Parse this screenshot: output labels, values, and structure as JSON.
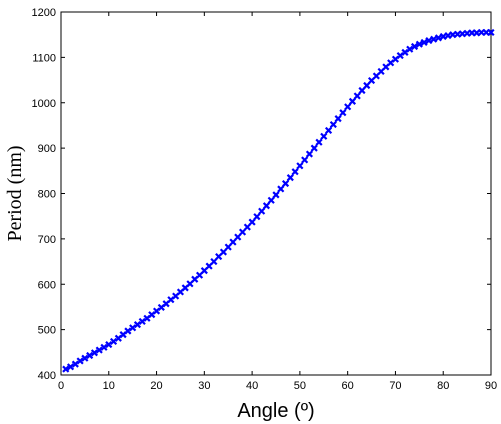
{
  "chart_data": {
    "type": "scatter",
    "title": "",
    "xlabel": "Angle (º)",
    "ylabel": "Period (nm)",
    "xlim": [
      0,
      90
    ],
    "ylim": [
      400,
      1200
    ],
    "xticks": [
      0,
      10,
      20,
      30,
      40,
      50,
      60,
      70,
      80,
      90
    ],
    "yticks": [
      400,
      500,
      600,
      700,
      800,
      900,
      1000,
      1100,
      1200
    ],
    "grid": false,
    "marker": "x",
    "colors": {
      "series": "#0000ff",
      "axes": "#000000"
    },
    "series": [
      {
        "x": [
          1,
          2,
          3,
          4,
          5,
          6,
          7,
          8,
          9,
          10,
          11,
          12,
          13,
          14,
          15,
          16,
          17,
          18,
          19,
          20,
          21,
          22,
          23,
          24,
          25,
          26,
          27,
          28,
          29,
          30,
          31,
          32,
          33,
          34,
          35,
          36,
          37,
          38,
          39,
          40,
          41,
          42,
          43,
          44,
          45,
          46,
          47,
          48,
          49,
          50,
          51,
          52,
          53,
          54,
          55,
          56,
          57,
          58,
          59,
          60,
          61,
          62,
          63,
          64,
          65,
          66,
          67,
          68,
          69,
          70,
          71,
          72,
          73,
          74,
          75,
          76,
          77,
          78,
          79,
          80,
          81,
          82,
          83,
          84,
          85,
          86,
          87,
          88,
          89,
          90
        ],
        "y": [
          413,
          418,
          424,
          431,
          437,
          443,
          449,
          455,
          461,
          467,
          474,
          481,
          489,
          497,
          504,
          511,
          518,
          525,
          533,
          541,
          549,
          557,
          566,
          574,
          583,
          592,
          601,
          611,
          620,
          630,
          640,
          650,
          661,
          671,
          682,
          693,
          704,
          715,
          726,
          737,
          749,
          761,
          773,
          785,
          797,
          810,
          822,
          835,
          848,
          861,
          874,
          887,
          900,
          913,
          926,
          939,
          952,
          965,
          978,
          991,
          1003,
          1015,
          1027,
          1038,
          1049,
          1059,
          1069,
          1079,
          1088,
          1096,
          1104,
          1111,
          1118,
          1124,
          1129,
          1133,
          1137,
          1140,
          1143,
          1146,
          1148,
          1150,
          1151,
          1152,
          1153,
          1154,
          1154,
          1155,
          1155,
          1155
        ]
      }
    ]
  }
}
